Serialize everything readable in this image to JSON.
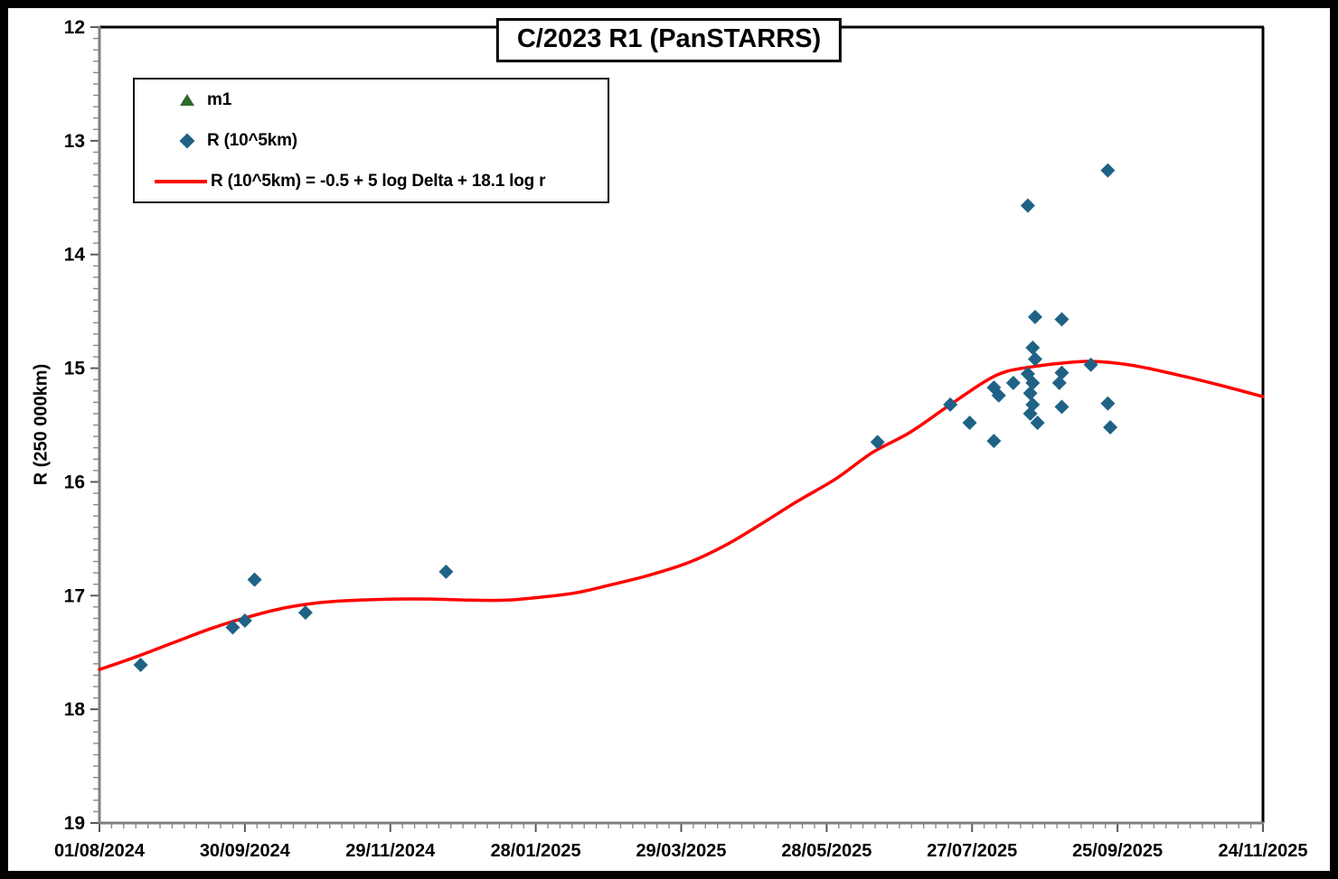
{
  "chart_data": {
    "type": "scatter",
    "title": "C/2023 R1 (PanSTARRS)",
    "xlabel": "",
    "ylabel": "R (250 000km)",
    "y_axis": {
      "min": 12,
      "max": 19,
      "major_step": 1,
      "minor_step": 0.1,
      "inverted": true,
      "tick_labels": [
        "12",
        "13",
        "14",
        "15",
        "16",
        "17",
        "18",
        "19"
      ]
    },
    "x_axis": {
      "start_date": "01/08/2024",
      "end_date": "24/11/2025",
      "major_step_days": 60,
      "minor_step_days": 5,
      "tick_labels": [
        "01/08/2024",
        "30/09/2024",
        "29/11/2024",
        "28/01/2025",
        "29/03/2025",
        "28/05/2025",
        "27/07/2025",
        "25/09/2025",
        "24/11/2025"
      ]
    },
    "grid": false,
    "legend_position": "upper-left",
    "colors": {
      "m1": "#2e6b2d",
      "points": "#1f6285",
      "trend": "#ff0000",
      "axis_line": "#808080",
      "major_tick": "#595959",
      "minor_tick": "#8c8c8c",
      "frame": "#000000",
      "text": "#000000"
    },
    "series": [
      {
        "name": "m1",
        "marker": "triangle",
        "color": "#2e6b2d",
        "points": []
      },
      {
        "name": "R (10^5km)",
        "marker": "diamond",
        "color": "#1f6285",
        "points": [
          {
            "date": "18/08/2024",
            "value": 17.61
          },
          {
            "date": "25/09/2024",
            "value": 17.28
          },
          {
            "date": "30/09/2024",
            "value": 17.22
          },
          {
            "date": "04/10/2024",
            "value": 16.86
          },
          {
            "date": "25/10/2024",
            "value": 17.15
          },
          {
            "date": "22/12/2024",
            "value": 16.79
          },
          {
            "date": "18/06/2025",
            "value": 15.65
          },
          {
            "date": "18/07/2025",
            "value": 15.32
          },
          {
            "date": "26/07/2025",
            "value": 15.48
          },
          {
            "date": "05/08/2025",
            "value": 15.64
          },
          {
            "date": "05/08/2025",
            "value": 15.17
          },
          {
            "date": "07/08/2025",
            "value": 15.24
          },
          {
            "date": "13/08/2025",
            "value": 15.13
          },
          {
            "date": "19/08/2025",
            "value": 13.57
          },
          {
            "date": "19/08/2025",
            "value": 15.05
          },
          {
            "date": "20/08/2025",
            "value": 15.22
          },
          {
            "date": "21/08/2025",
            "value": 15.32
          },
          {
            "date": "20/08/2025",
            "value": 15.4
          },
          {
            "date": "21/08/2025",
            "value": 14.82
          },
          {
            "date": "22/08/2025",
            "value": 14.92
          },
          {
            "date": "21/08/2025",
            "value": 15.13
          },
          {
            "date": "22/08/2025",
            "value": 14.55
          },
          {
            "date": "23/08/2025",
            "value": 15.48
          },
          {
            "date": "01/09/2025",
            "value": 15.13
          },
          {
            "date": "02/09/2025",
            "value": 15.04
          },
          {
            "date": "02/09/2025",
            "value": 15.34
          },
          {
            "date": "02/09/2025",
            "value": 14.57
          },
          {
            "date": "14/09/2025",
            "value": 14.97
          },
          {
            "date": "21/09/2025",
            "value": 13.26
          },
          {
            "date": "21/09/2025",
            "value": 15.31
          },
          {
            "date": "22/09/2025",
            "value": 15.52
          }
        ]
      },
      {
        "name": "R (10^5km) = -0.5 + 5 log Delta + 18.1 log r",
        "marker": "line",
        "color": "#ff0000",
        "points": [
          {
            "date": "01/08/2024",
            "value": 17.65
          },
          {
            "date": "16/08/2024",
            "value": 17.54
          },
          {
            "date": "01/09/2024",
            "value": 17.41
          },
          {
            "date": "16/09/2024",
            "value": 17.29
          },
          {
            "date": "01/10/2024",
            "value": 17.19
          },
          {
            "date": "16/10/2024",
            "value": 17.11
          },
          {
            "date": "01/11/2024",
            "value": 17.06
          },
          {
            "date": "16/11/2024",
            "value": 17.04
          },
          {
            "date": "01/12/2024",
            "value": 17.03
          },
          {
            "date": "16/12/2024",
            "value": 17.03
          },
          {
            "date": "01/01/2025",
            "value": 17.04
          },
          {
            "date": "16/01/2025",
            "value": 17.04
          },
          {
            "date": "01/02/2025",
            "value": 17.01
          },
          {
            "date": "15/02/2025",
            "value": 16.97
          },
          {
            "date": "01/03/2025",
            "value": 16.9
          },
          {
            "date": "16/03/2025",
            "value": 16.82
          },
          {
            "date": "01/04/2025",
            "value": 16.71
          },
          {
            "date": "16/04/2025",
            "value": 16.56
          },
          {
            "date": "01/05/2025",
            "value": 16.37
          },
          {
            "date": "16/05/2025",
            "value": 16.17
          },
          {
            "date": "01/06/2025",
            "value": 15.97
          },
          {
            "date": "16/06/2025",
            "value": 15.74
          },
          {
            "date": "01/07/2025",
            "value": 15.57
          },
          {
            "date": "16/07/2025",
            "value": 15.35
          },
          {
            "date": "01/08/2025",
            "value": 15.12
          },
          {
            "date": "10/08/2025",
            "value": 15.03
          },
          {
            "date": "20/08/2025",
            "value": 14.99
          },
          {
            "date": "31/08/2025",
            "value": 14.96
          },
          {
            "date": "12/09/2025",
            "value": 14.94
          },
          {
            "date": "22/09/2025",
            "value": 14.95
          },
          {
            "date": "05/10/2025",
            "value": 14.99
          },
          {
            "date": "24/10/2025",
            "value": 15.08
          },
          {
            "date": "10/11/2025",
            "value": 15.17
          },
          {
            "date": "24/11/2025",
            "value": 15.25
          }
        ]
      }
    ]
  }
}
